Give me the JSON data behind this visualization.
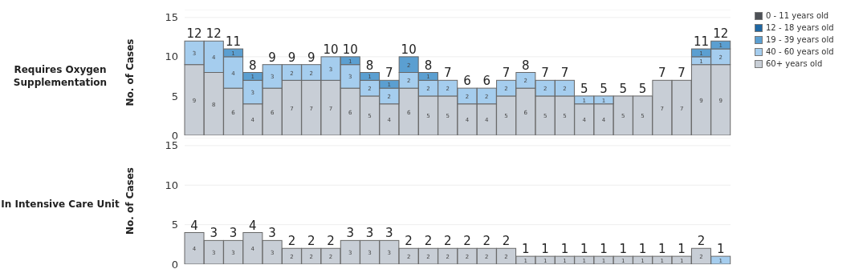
{
  "chart_data": [
    {
      "type": "bar",
      "annotations": [
        "Requires Oxygen Supplementation"
      ],
      "ylabel": "No. of Cases",
      "stacked": true,
      "categories": [
        null,
        null,
        null,
        null,
        null,
        null,
        null,
        null,
        null,
        null,
        null,
        null,
        null,
        null,
        null,
        null,
        null,
        null,
        null,
        null,
        null,
        null,
        null,
        null,
        null,
        null,
        null,
        null
      ],
      "ylim": [
        0,
        16
      ],
      "yticks": [
        0,
        5,
        10,
        15
      ],
      "grid": "y",
      "data_labels": true,
      "legend": "top right",
      "series": [
        {
          "name": "60+ years old",
          "color": "#c8ced6",
          "values": [
            9,
            8,
            6,
            4,
            6,
            7,
            7,
            7,
            6,
            5,
            4,
            6,
            5,
            5,
            4,
            4,
            5,
            6,
            5,
            5,
            4,
            4,
            5,
            5,
            7,
            7,
            9,
            9
          ]
        },
        {
          "name": "40 - 60 years old",
          "color": "#a5cdee",
          "values": [
            3,
            4,
            4,
            3,
            3,
            2,
            2,
            3,
            3,
            2,
            2,
            2,
            2,
            2,
            2,
            2,
            2,
            2,
            2,
            2,
            1,
            1,
            null,
            null,
            null,
            null,
            1,
            2
          ]
        },
        {
          "name": "19 - 39 years old",
          "color": "#5b9fd1",
          "values": [
            null,
            null,
            1,
            1,
            null,
            null,
            null,
            null,
            1,
            1,
            1,
            2,
            1,
            null,
            null,
            null,
            null,
            null,
            null,
            null,
            null,
            null,
            null,
            null,
            null,
            null,
            1,
            1
          ]
        },
        {
          "name": "12 - 18 years old",
          "color": "#1f67a3",
          "values": [
            null,
            null,
            null,
            null,
            null,
            null,
            null,
            null,
            null,
            null,
            null,
            null,
            null,
            null,
            null,
            null,
            null,
            null,
            null,
            null,
            null,
            null,
            null,
            null,
            null,
            null,
            null,
            null
          ]
        },
        {
          "name": "0 - 11 years old",
          "color": "#4d5157",
          "values": [
            null,
            null,
            null,
            null,
            null,
            null,
            null,
            null,
            null,
            null,
            null,
            null,
            null,
            null,
            null,
            null,
            null,
            null,
            null,
            null,
            null,
            null,
            null,
            null,
            null,
            null,
            null,
            null
          ]
        }
      ],
      "totals": [
        "12",
        "12",
        "11",
        "8",
        "9",
        "9",
        "9",
        "10",
        "10",
        "8",
        "7",
        "10",
        "8",
        "7",
        "6",
        "6",
        "7",
        "8",
        "7",
        "7",
        "5",
        "5",
        "5",
        "5",
        "7",
        "7",
        "11",
        "12"
      ]
    },
    {
      "type": "bar",
      "annotations": [
        "In Intensive Care Unit"
      ],
      "ylabel": "No. of Cases",
      "stacked": true,
      "categories": [
        null,
        null,
        null,
        null,
        null,
        null,
        null,
        null,
        null,
        null,
        null,
        null,
        null,
        null,
        null,
        null,
        null,
        null,
        null,
        null,
        null,
        null,
        null,
        null,
        null,
        null,
        null,
        null
      ],
      "ylim": [
        0,
        16
      ],
      "yticks": [
        0,
        5,
        10,
        15
      ],
      "grid": "y",
      "data_labels": true,
      "series": [
        {
          "color": "#c8ced6",
          "values": [
            4,
            3,
            3,
            4,
            3,
            2,
            2,
            2,
            3,
            3,
            3,
            2,
            2,
            2,
            2,
            2,
            2,
            1,
            1,
            1,
            1,
            1,
            1,
            1,
            1,
            1,
            2,
            null
          ]
        },
        {
          "color": "#a5cdee",
          "values": [
            null,
            null,
            null,
            null,
            null,
            null,
            null,
            null,
            null,
            null,
            null,
            null,
            null,
            null,
            null,
            null,
            null,
            null,
            null,
            null,
            null,
            null,
            null,
            null,
            null,
            null,
            null,
            1
          ]
        }
      ],
      "totals": [
        "4",
        "3",
        "3",
        "4",
        "3",
        "2",
        "2",
        "2",
        "3",
        "3",
        "3",
        "2",
        "2",
        "2",
        "2",
        "2",
        "2",
        "1",
        "1",
        "1",
        "1",
        "1",
        "1",
        "1",
        "1",
        "1",
        "2",
        "1"
      ]
    }
  ]
}
